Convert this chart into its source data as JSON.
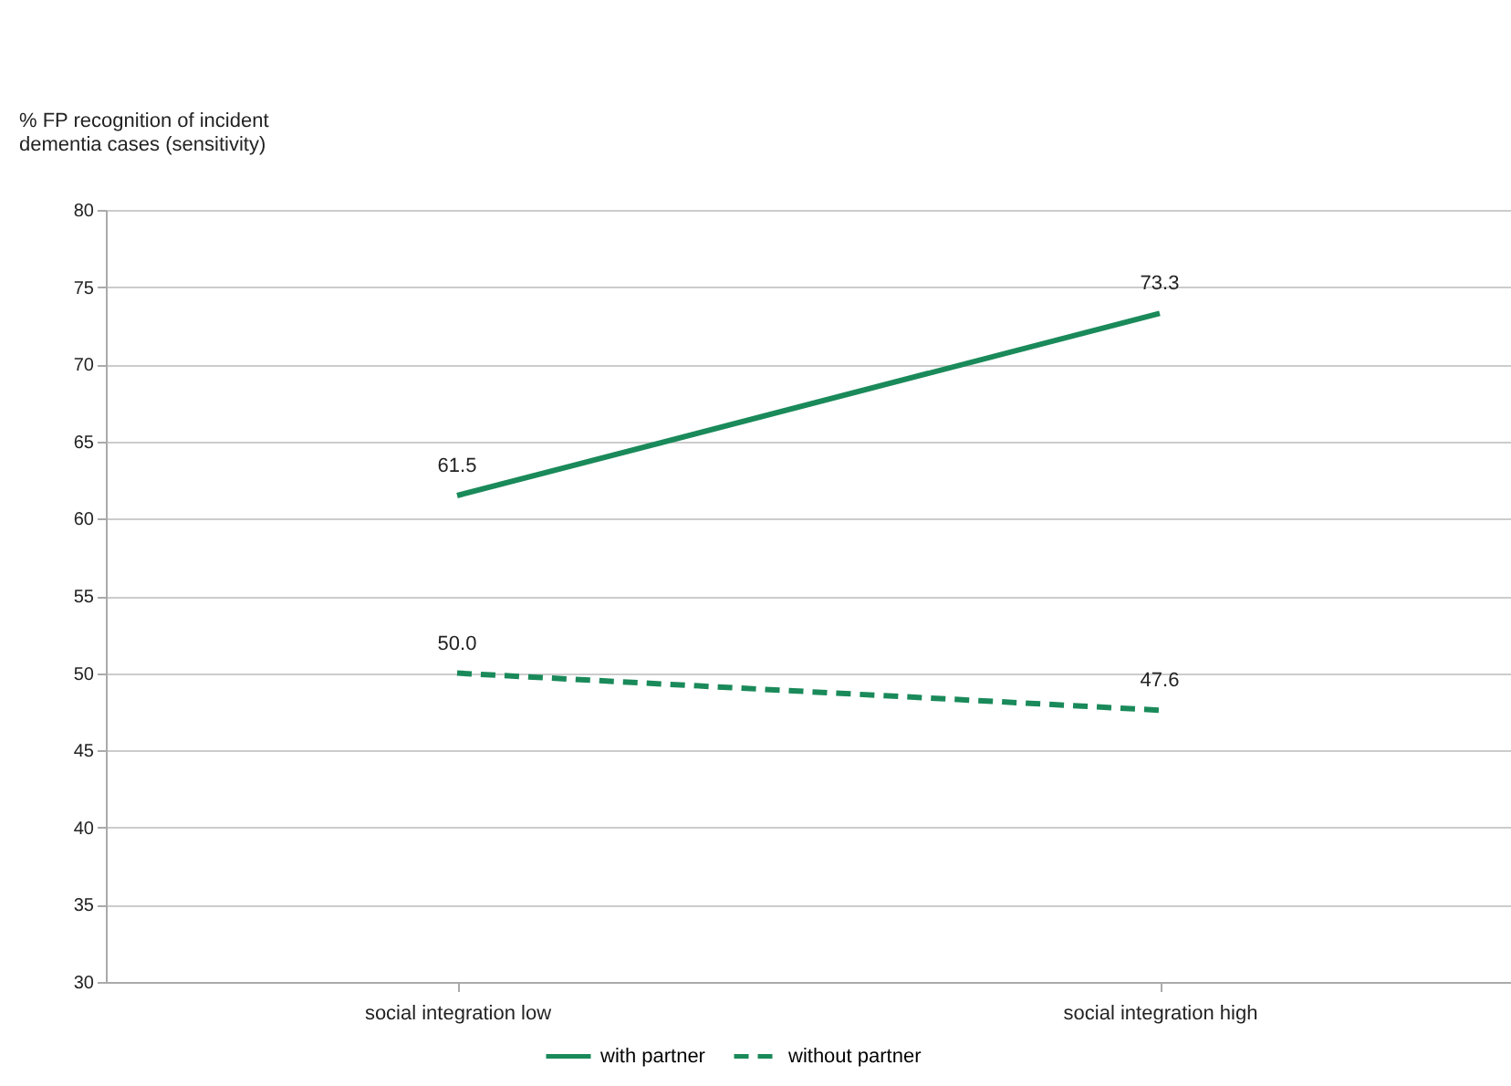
{
  "chart_data": {
    "type": "line",
    "ylabel": "% FP recognition of incident dementia cases (sensitivity)",
    "categories": [
      "social integration low",
      "social integration high"
    ],
    "series": [
      {
        "name": "with partner",
        "color": "#1a8a5a",
        "values": [
          61.5,
          73.3
        ],
        "line_style": "solid",
        "value_labels": [
          "61.5",
          "73.3"
        ]
      },
      {
        "name": "without partner",
        "color": "#1a8a5a",
        "values": [
          50.0,
          47.6
        ],
        "line_style": "dashed",
        "value_labels": [
          "50.0",
          "47.6"
        ]
      }
    ],
    "ylim": [
      30,
      80
    ],
    "yticks": [
      30,
      35,
      40,
      45,
      50,
      55,
      60,
      65,
      70,
      75,
      80
    ],
    "grid": "y",
    "legend": "bottom",
    "marker": "none"
  }
}
